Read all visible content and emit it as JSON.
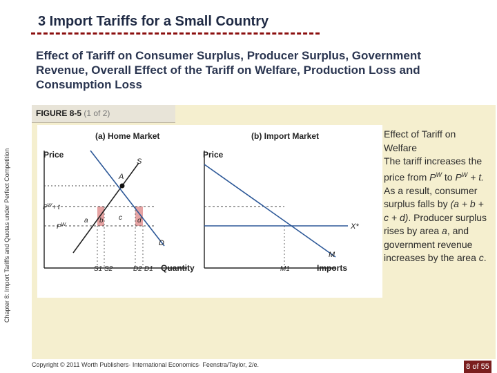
{
  "header": {
    "title": "3 Import Tariffs for a Small Country",
    "subtitle": "Effect of Tariff on Consumer Surplus, Producer Surplus, Government Revenue, Overall Effect of the Tariff on Welfare, Production Loss and Consumption Loss"
  },
  "figure": {
    "label_prefix": "FIGURE",
    "label_number": "8-5",
    "label_part": "(1 of 2)",
    "panel_a_title": "(a) Home Market",
    "panel_b_title": "(b) Import Market",
    "a": {
      "y_label": "Price",
      "x_label": "Quantity",
      "supply": "S",
      "demand": "D",
      "point": "A",
      "price_high": "P",
      "price_high_sup": "W",
      "price_high_tail": "+ t",
      "price_low": "P",
      "price_low_sup": "W",
      "area_a": "a",
      "area_b": "b",
      "area_c": "c",
      "area_d": "d",
      "ticks": [
        "S1",
        "S2",
        "D2",
        "D1"
      ]
    },
    "b": {
      "y_label": "Price",
      "x_label": "Imports",
      "import_demand": "M",
      "export_supply": "X*",
      "tick": "M1"
    }
  },
  "side_text": "Chapter 8: Import Tariffs and Quotas under Perfect Competition",
  "right": {
    "heading": "Effect of Tariff on Welfare",
    "p1a": "The tariff increases the price from ",
    "p1b": "P",
    "p1c": "W",
    "p1d": " to ",
    "p1e": "P",
    "p1f": "W",
    "p1g": " + t.",
    "p2a": "As a result, consumer surplus falls by ",
    "p2b": "(a + b + c + d)",
    "p2c": ". Producer surplus rises by area ",
    "p2d": "a",
    "p2e": ", and government revenue increases by the area ",
    "p2f": "c",
    "p2g": "."
  },
  "footer": "Copyright © 2011 Worth Publishers· International Economics· Feenstra/Taylor, 2/e.",
  "page": "8 of 55",
  "colors": {
    "area_red": "#e6a3a3",
    "supply_line": "#222222",
    "demand_line": "#2b5797",
    "title_rule": "#8b0f0f"
  }
}
